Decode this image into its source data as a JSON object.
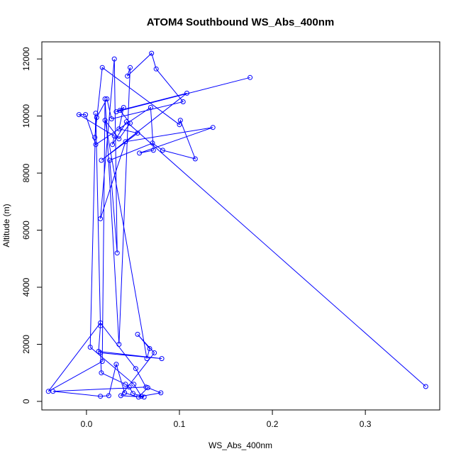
{
  "chart_data": {
    "type": "line",
    "title": "ATOM4 Southbound WS_Abs_400nm",
    "xlabel": "WS_Abs_400nm",
    "ylabel": "Altitude (m)",
    "xlim": [
      -0.048,
      0.38
    ],
    "ylim": [
      -300,
      12600
    ],
    "x_ticks": [
      0.0,
      0.1,
      0.2,
      0.3
    ],
    "x_tick_labels": [
      "0.0",
      "0.1",
      "0.2",
      "0.3"
    ],
    "y_ticks": [
      0,
      2000,
      4000,
      6000,
      8000,
      10000,
      12000
    ],
    "y_tick_labels": [
      "0",
      "2000",
      "4000",
      "6000",
      "8000",
      "10000",
      "12000"
    ],
    "grid": false,
    "series_color": "#0000ff",
    "series": [
      {
        "marker": "open-circle",
        "x": [
          0.176,
          0.032,
          0.04,
          0.035,
          0.055,
          0.016,
          0.108,
          0.036,
          0.047,
          0.035,
          0.02,
          0.065,
          0.068,
          0.055,
          0.073,
          0.037,
          0.062,
          0.05,
          0.046,
          0.042,
          0.016,
          0.015,
          0.081,
          0.013,
          0.015,
          0.01,
          0.004,
          0.051,
          0.059,
          0.08,
          0.066,
          0.056,
          0.041,
          0.032,
          0.024,
          0.015,
          -0.036,
          0.064,
          0.053,
          0.015,
          -0.041,
          0.017,
          0.02,
          0.035,
          0.047,
          0.044,
          0.07,
          0.075,
          0.104,
          0.027,
          0.022,
          0.011,
          0.009,
          0.017,
          0.1,
          0.101,
          0.117,
          0.082,
          0.071,
          0.025,
          0.033,
          0.03,
          0.015,
          0.042,
          0.136,
          0.057,
          0.072,
          0.069,
          0.01,
          -0.001,
          -0.008,
          0.03,
          0.028,
          0.043,
          0.365
        ],
        "y": [
          11350,
          10150,
          10300,
          9550,
          9400,
          8450,
          10800,
          10200,
          9750,
          9200,
          9850,
          1500,
          1850,
          2350,
          1700,
          200,
          150,
          280,
          500,
          600,
          1000,
          1700,
          1500,
          1750,
          2650,
          10100,
          1900,
          600,
          180,
          300,
          480,
          150,
          300,
          1300,
          200,
          180,
          350,
          500,
          1150,
          2750,
          350,
          1400,
          10600,
          2000,
          11700,
          11400,
          12200,
          11650,
          10500,
          9900,
          10600,
          9950,
          9250,
          11700,
          9700,
          9850,
          8500,
          8800,
          9050,
          8450,
          5200,
          12000,
          6400,
          9100,
          9600,
          8700,
          8800,
          10300,
          9000,
          10050,
          10050,
          9300,
          9000,
          9800,
          520
        ]
      }
    ]
  }
}
